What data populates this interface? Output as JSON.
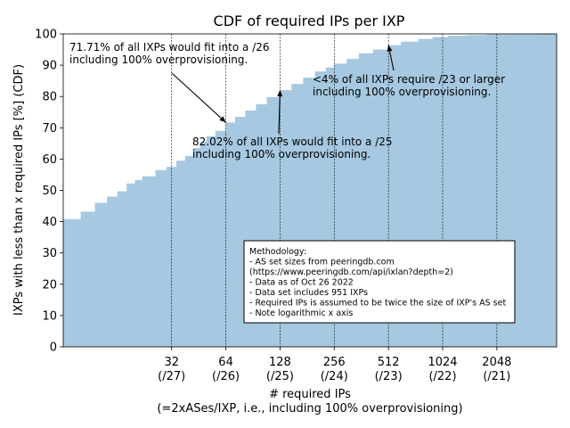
{
  "chart_data": {
    "type": "bar",
    "title": "CDF of required IPs per IXP",
    "xlabel": "# required IPs",
    "xlabel_sub": "(=2xASes/IXP, i.e., including 100% overprovisioning)",
    "ylabel": "IXPs with less than x required IPs [%] (CDF)",
    "x_scale": "log2",
    "xlim": [
      8,
      4400
    ],
    "ylim": [
      0,
      100
    ],
    "yticks": [
      0,
      10,
      20,
      30,
      40,
      50,
      60,
      70,
      80,
      90,
      100
    ],
    "xticks": [
      {
        "value": 32,
        "label": "32",
        "sublabel": "(/27)"
      },
      {
        "value": 64,
        "label": "64",
        "sublabel": "(/26)"
      },
      {
        "value": 128,
        "label": "128",
        "sublabel": "(/25)"
      },
      {
        "value": 256,
        "label": "256",
        "sublabel": "(/24)"
      },
      {
        "value": 512,
        "label": "512",
        "sublabel": "(/23)"
      },
      {
        "value": 1024,
        "label": "1024",
        "sublabel": "(/22)"
      },
      {
        "value": 2048,
        "label": "2048",
        "sublabel": "(/21)"
      }
    ],
    "bar_color": "#a6c8e0",
    "cdf_points": [
      {
        "x": 8,
        "y": 40.8
      },
      {
        "x": 10,
        "y": 43.2
      },
      {
        "x": 12,
        "y": 46.0
      },
      {
        "x": 14,
        "y": 48.0
      },
      {
        "x": 16,
        "y": 49.7
      },
      {
        "x": 18,
        "y": 52.2
      },
      {
        "x": 20,
        "y": 53.3
      },
      {
        "x": 22,
        "y": 54.5
      },
      {
        "x": 26,
        "y": 56.5
      },
      {
        "x": 30,
        "y": 57.5
      },
      {
        "x": 34,
        "y": 59.5
      },
      {
        "x": 38,
        "y": 61.0
      },
      {
        "x": 42,
        "y": 63.5
      },
      {
        "x": 46,
        "y": 65.5
      },
      {
        "x": 50,
        "y": 67.3
      },
      {
        "x": 56,
        "y": 69.0
      },
      {
        "x": 64,
        "y": 71.7
      },
      {
        "x": 72,
        "y": 73.5
      },
      {
        "x": 82,
        "y": 75.5
      },
      {
        "x": 94,
        "y": 77.5
      },
      {
        "x": 108,
        "y": 79.8
      },
      {
        "x": 128,
        "y": 82.0
      },
      {
        "x": 148,
        "y": 84.0
      },
      {
        "x": 172,
        "y": 86.0
      },
      {
        "x": 200,
        "y": 88.0
      },
      {
        "x": 230,
        "y": 89.3
      },
      {
        "x": 256,
        "y": 90.5
      },
      {
        "x": 300,
        "y": 92.0
      },
      {
        "x": 350,
        "y": 93.8
      },
      {
        "x": 420,
        "y": 95.0
      },
      {
        "x": 512,
        "y": 96.4
      },
      {
        "x": 600,
        "y": 97.5
      },
      {
        "x": 750,
        "y": 98.4
      },
      {
        "x": 900,
        "y": 99.0
      },
      {
        "x": 1100,
        "y": 99.4
      },
      {
        "x": 1400,
        "y": 99.6
      },
      {
        "x": 1800,
        "y": 99.8
      },
      {
        "x": 2500,
        "y": 99.95
      },
      {
        "x": 3500,
        "y": 100.0
      }
    ],
    "annotations": [
      {
        "text": [
          "71.71% of all IXPs would fit into a /26",
          "including 100% overprovisioning."
        ],
        "target": {
          "x": 64,
          "y": 71.71
        }
      },
      {
        "text": [
          "82.02% of all IXPs would fit into a /25",
          "including 100% overprovisioning."
        ],
        "target": {
          "x": 128,
          "y": 82.02
        }
      },
      {
        "text": [
          "<4% of all IXPs require /23 or larger",
          "including 100% overprovisioning."
        ],
        "target": {
          "x": 512,
          "y": 96.4
        }
      }
    ],
    "methodology": [
      "Methodology:",
      "- AS set sizes from peeringdb.com",
      "(https://www.peeringdb.com/api/ixlan?depth=2)",
      "- Data as of Oct 26 2022",
      "- Data set includes 951 IXPs",
      "- Required IPs is assumed to be twice the size of IXP's AS set",
      "- Note logarithmic x axis"
    ]
  }
}
